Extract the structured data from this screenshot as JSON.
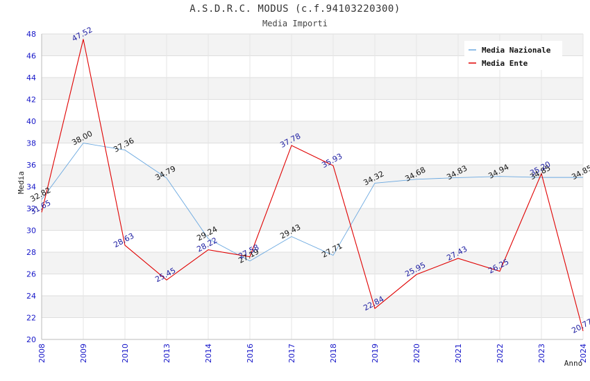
{
  "chart_data": {
    "type": "line",
    "title": "A.S.D.R.C. MODUS (c.f.94103220300)",
    "subtitle": "Media Importi",
    "xlabel": "Anno",
    "ylabel": "Media",
    "ylim": [
      20,
      48
    ],
    "yticks": [
      "20",
      "22",
      "24",
      "26",
      "28",
      "30",
      "32",
      "34",
      "36",
      "38",
      "40",
      "42",
      "44",
      "46",
      "48"
    ],
    "categories": [
      "2008",
      "2009",
      "2010",
      "2013",
      "2014",
      "2016",
      "2017",
      "2018",
      "2019",
      "2020",
      "2021",
      "2022",
      "2023",
      "2024"
    ],
    "series": [
      {
        "name": "Media Nazionale",
        "color": "#6aa8e0",
        "values": [
          32.82,
          38.0,
          37.36,
          34.79,
          29.24,
          27.19,
          29.43,
          27.71,
          34.32,
          34.68,
          34.83,
          34.94,
          34.85,
          34.85
        ],
        "labels": [
          "32.82",
          "38.00",
          "37.36",
          "34.79",
          "29.24",
          "27.19",
          "29.43",
          "27.71",
          "34.32",
          "34.68",
          "34.83",
          "34.94",
          "34.85",
          "34.85"
        ]
      },
      {
        "name": "Media Ente",
        "color": "#e00000",
        "values": [
          31.65,
          47.52,
          28.63,
          25.45,
          28.22,
          27.58,
          37.78,
          35.93,
          22.84,
          25.95,
          27.43,
          26.25,
          35.2,
          20.77
        ],
        "labels": [
          "31.65",
          "47.52",
          "28.63",
          "25.45",
          "28.22",
          "27.58",
          "37.78",
          "35.93",
          "22.84",
          "25.95",
          "27.43",
          "26.25",
          "35.20",
          "20.77"
        ]
      }
    ],
    "grid": true,
    "legend": "top-right"
  }
}
